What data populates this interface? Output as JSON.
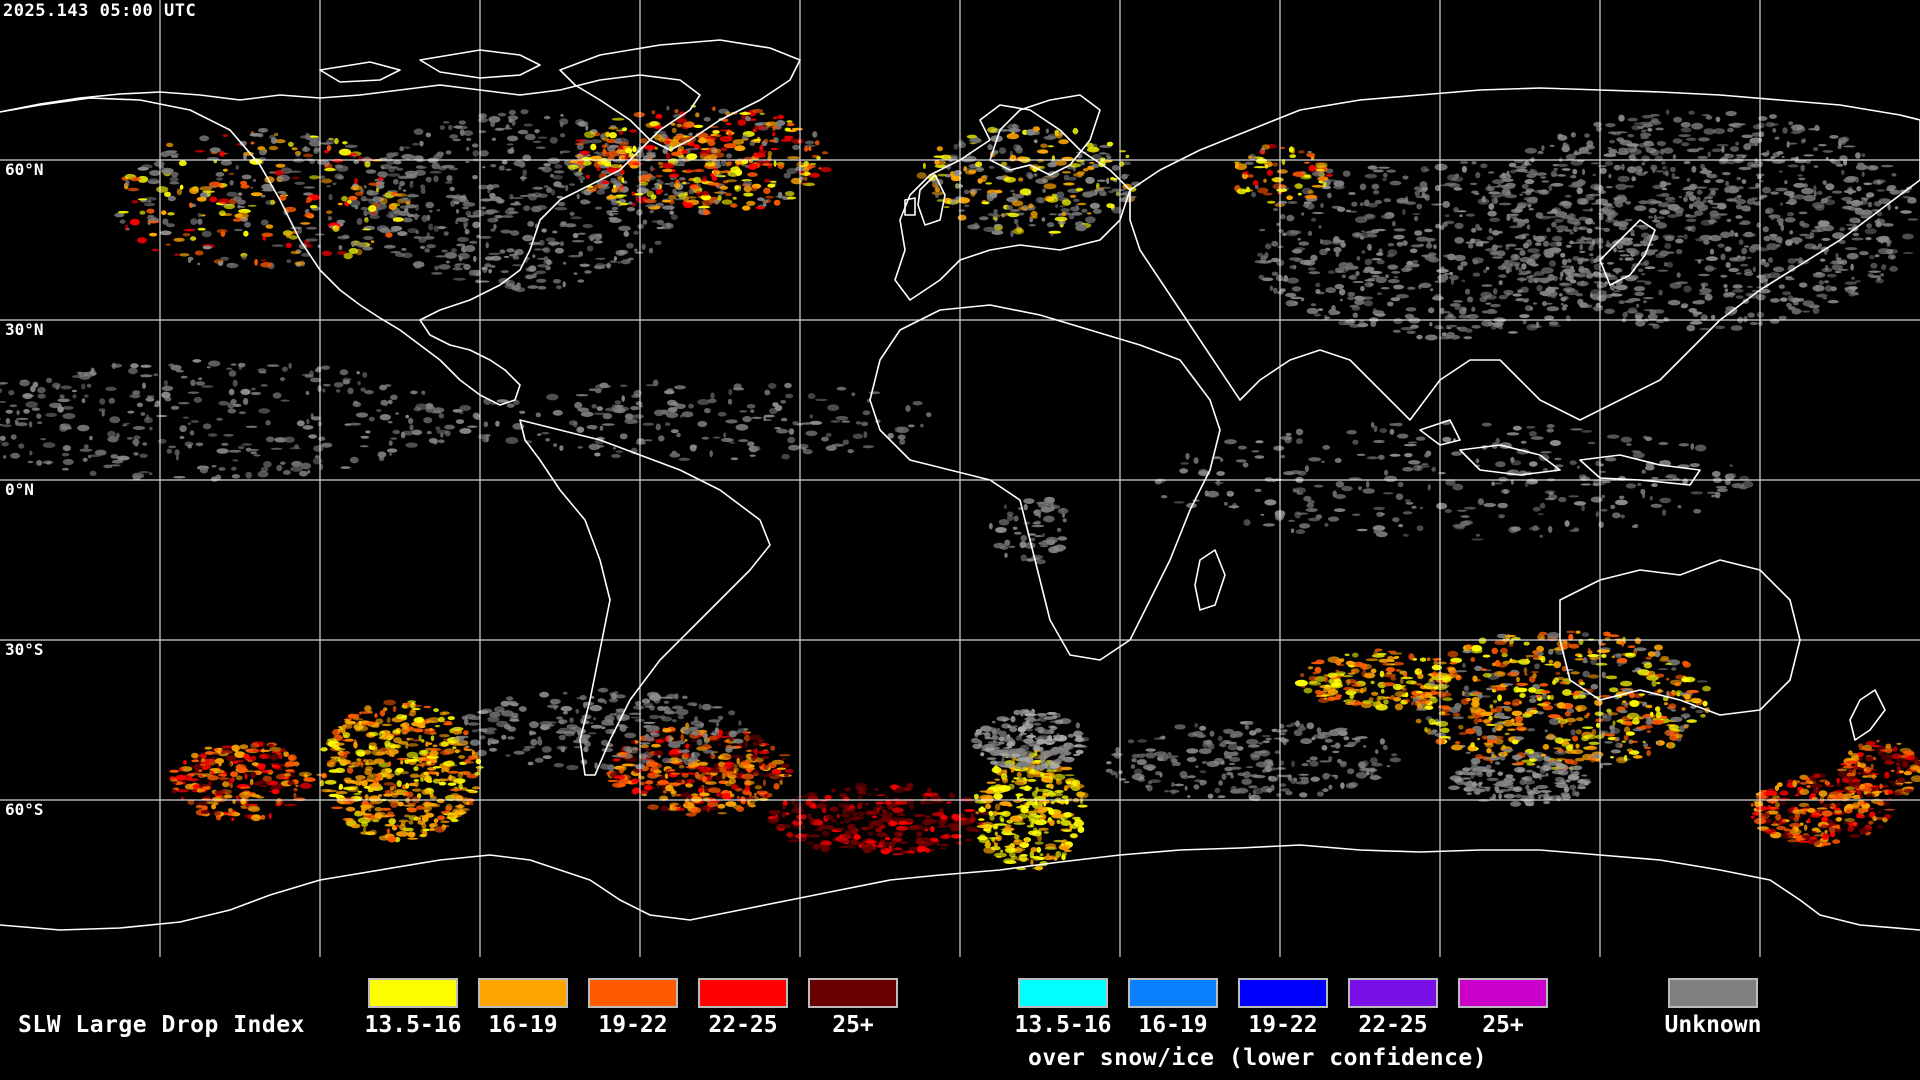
{
  "header": {
    "timestamp": "2025.143 05:00 UTC"
  },
  "map": {
    "lat_labels": [
      "60°N",
      "30°N",
      "0°N",
      "30°S",
      "60°S"
    ],
    "colors": {
      "background": "#000000",
      "coastline": "#ffffff",
      "grid": "#ffffff",
      "unknown": "#808080"
    }
  },
  "legend": {
    "title": "SLW Large Drop Index",
    "liquid": [
      {
        "label": "13.5-16",
        "color": "#ffff00"
      },
      {
        "label": "16-19",
        "color": "#ffa500"
      },
      {
        "label": "19-22",
        "color": "#ff5a00"
      },
      {
        "label": "22-25",
        "color": "#ff0000"
      },
      {
        "label": "25+",
        "color": "#6a0000"
      }
    ],
    "snow_ice": [
      {
        "label": "13.5-16",
        "color": "#00ffff"
      },
      {
        "label": "16-19",
        "color": "#0a80ff"
      },
      {
        "label": "19-22",
        "color": "#0000ff"
      },
      {
        "label": "22-25",
        "color": "#7a10e8"
      },
      {
        "label": "25+",
        "color": "#cc00cc"
      }
    ],
    "snow_ice_caption": "over snow/ice (lower confidence)",
    "unknown": {
      "label": "Unknown",
      "color": "#808080"
    }
  }
}
